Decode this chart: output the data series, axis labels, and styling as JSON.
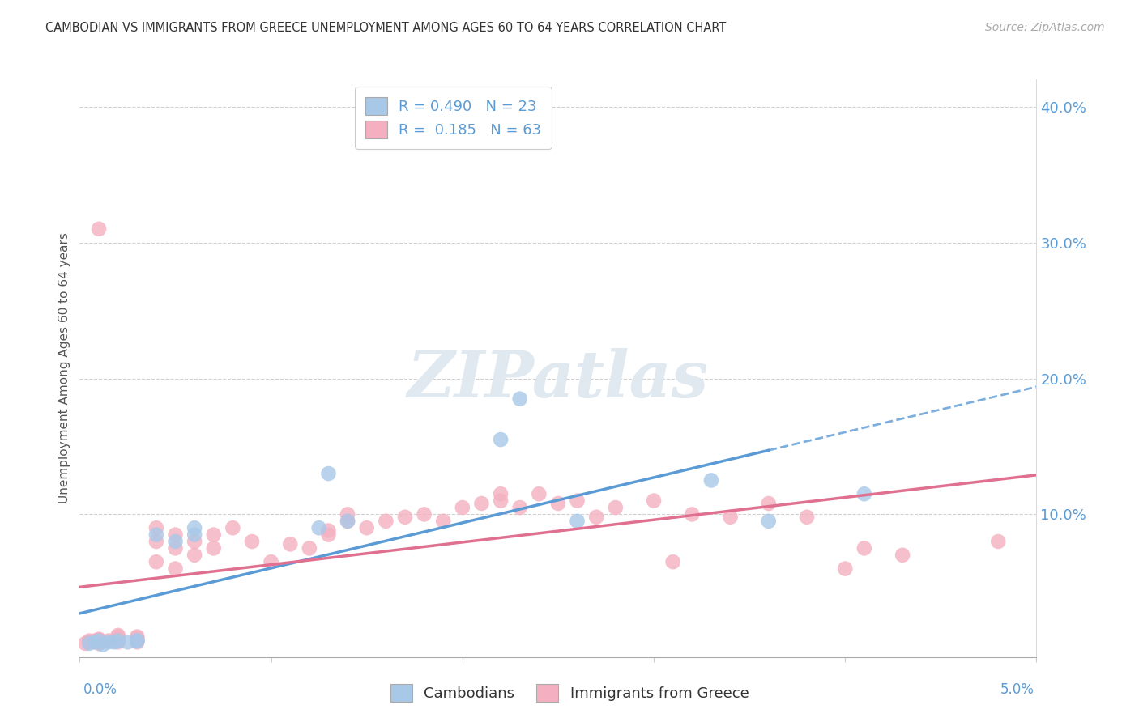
{
  "title": "CAMBODIAN VS IMMIGRANTS FROM GREECE UNEMPLOYMENT AMONG AGES 60 TO 64 YEARS CORRELATION CHART",
  "source": "Source: ZipAtlas.com",
  "ylabel": "Unemployment Among Ages 60 to 64 years",
  "xlim": [
    0.0,
    0.05
  ],
  "ylim": [
    -0.005,
    0.42
  ],
  "ytick_vals": [
    0.0,
    0.1,
    0.2,
    0.3,
    0.4
  ],
  "ytick_labels": [
    "",
    "10.0%",
    "20.0%",
    "30.0%",
    "40.0%"
  ],
  "cambodian_color": "#a8c8e8",
  "cambodian_color_line": "#5b9bd5",
  "greece_color": "#f4b0c0",
  "greece_color_line": "#e07090",
  "tick_color": "#5b9bd5",
  "cambodian_R": 0.49,
  "cambodian_N": 23,
  "greece_R": 0.185,
  "greece_N": 63,
  "legend_label_1": "Cambodians",
  "legend_label_2": "Immigrants from Greece",
  "background_color": "#ffffff",
  "grid_color": "#d0d0d0",
  "cam_x": [
    0.0005,
    0.0008,
    0.001,
    0.0012,
    0.0015,
    0.0018,
    0.002,
    0.0025,
    0.003,
    0.003,
    0.004,
    0.005,
    0.006,
    0.006,
    0.0125,
    0.013,
    0.014,
    0.022,
    0.023,
    0.026,
    0.033,
    0.036,
    0.041
  ],
  "cam_y": [
    0.005,
    0.006,
    0.007,
    0.004,
    0.006,
    0.006,
    0.007,
    0.006,
    0.007,
    0.007,
    0.085,
    0.08,
    0.09,
    0.085,
    0.09,
    0.13,
    0.095,
    0.155,
    0.185,
    0.095,
    0.125,
    0.095,
    0.115
  ],
  "gre_x": [
    0.0003,
    0.0005,
    0.0005,
    0.0008,
    0.001,
    0.001,
    0.001,
    0.001,
    0.001,
    0.0015,
    0.002,
    0.002,
    0.002,
    0.002,
    0.002,
    0.003,
    0.003,
    0.003,
    0.003,
    0.004,
    0.004,
    0.004,
    0.005,
    0.005,
    0.005,
    0.006,
    0.006,
    0.007,
    0.007,
    0.008,
    0.009,
    0.01,
    0.011,
    0.012,
    0.013,
    0.013,
    0.014,
    0.014,
    0.015,
    0.016,
    0.017,
    0.018,
    0.019,
    0.02,
    0.021,
    0.022,
    0.022,
    0.023,
    0.024,
    0.025,
    0.026,
    0.027,
    0.028,
    0.03,
    0.031,
    0.032,
    0.034,
    0.036,
    0.038,
    0.04,
    0.041,
    0.043,
    0.048
  ],
  "gre_y": [
    0.005,
    0.006,
    0.007,
    0.007,
    0.005,
    0.006,
    0.008,
    0.008,
    0.31,
    0.007,
    0.006,
    0.007,
    0.008,
    0.01,
    0.011,
    0.006,
    0.007,
    0.009,
    0.01,
    0.065,
    0.08,
    0.09,
    0.06,
    0.075,
    0.085,
    0.07,
    0.08,
    0.075,
    0.085,
    0.09,
    0.08,
    0.065,
    0.078,
    0.075,
    0.085,
    0.088,
    0.095,
    0.1,
    0.09,
    0.095,
    0.098,
    0.1,
    0.095,
    0.105,
    0.108,
    0.11,
    0.115,
    0.105,
    0.115,
    0.108,
    0.11,
    0.098,
    0.105,
    0.11,
    0.065,
    0.1,
    0.098,
    0.108,
    0.098,
    0.06,
    0.075,
    0.07,
    0.08
  ]
}
